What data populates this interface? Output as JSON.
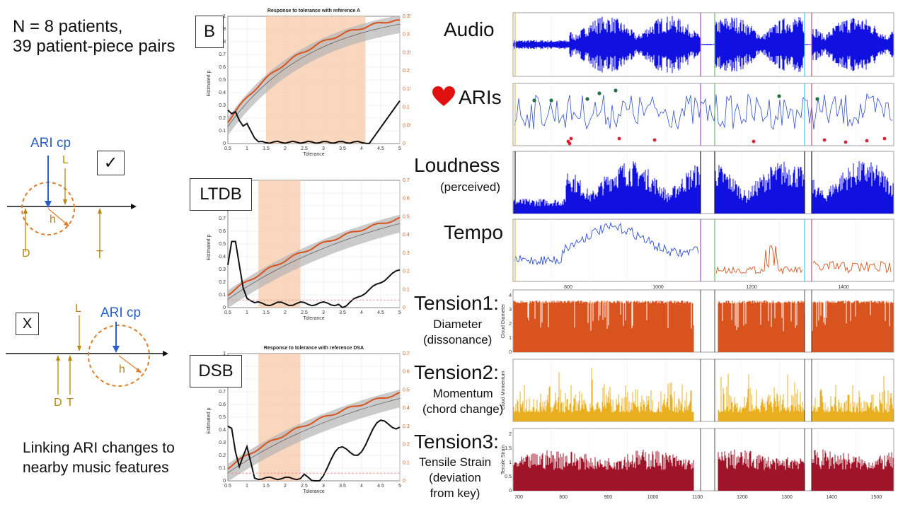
{
  "left": {
    "summary_line1": "N = 8 patients,",
    "summary_line2": "39 patient-piece pairs",
    "diagram1": {
      "ari_label": "ARI cp",
      "l": "L",
      "h": "h",
      "d": "D",
      "t": "T",
      "mark": "✓"
    },
    "diagram2": {
      "ari_label": "ARI cp",
      "l": "L",
      "h": "h",
      "d": "D",
      "t": "T",
      "mark": "X"
    },
    "caption_line1": "Linking ARI changes to",
    "caption_line2": "nearby music features"
  },
  "middle": {
    "panels": [
      {
        "id": "B",
        "label": "B",
        "title": "Response to tolerance with reference A",
        "ylabel": "Estimated p",
        "xlabel": "Tolerance",
        "xticks": [
          "0.5",
          "1",
          "1.5",
          "2",
          "2.5",
          "3",
          "3.5",
          "4",
          "4.5",
          "5"
        ],
        "yticks": [
          "0",
          "0.1",
          "0.2",
          "0.3",
          "0.4",
          "0.5",
          "0.6",
          "0.7",
          "0.8",
          "0.9",
          "1"
        ],
        "yticks_right": [
          "0",
          "0.05",
          "0.1",
          "0.15",
          "0.2",
          "0.25",
          "0.3",
          "0.35"
        ],
        "shade": [
          1.5,
          4.1
        ]
      },
      {
        "id": "LTDB",
        "label": "LTDB",
        "title": "",
        "ylabel": "Estimated p",
        "xlabel": "Tolerance",
        "xticks": [
          "0.5",
          "1",
          "1.5",
          "2",
          "2.5",
          "3",
          "3.5",
          "4",
          "4.5",
          "5"
        ],
        "yticks": [
          "0",
          "0.1",
          "0.2",
          "0.3",
          "0.4",
          "0.5",
          "0.6",
          "0.7",
          "0.8",
          "0.9",
          "1"
        ],
        "yticks_right": [
          "0",
          "0.1",
          "0.2",
          "0.3",
          "0.4",
          "0.5",
          "0.6",
          "0.7"
        ],
        "shade": [
          1.3,
          2.4
        ]
      },
      {
        "id": "DSB",
        "label": "DSB",
        "title": "Response to tolerance with reference DSA",
        "ylabel": "Estimated p",
        "xlabel": "Tolerance",
        "xticks": [
          "0.5",
          "1",
          "1.5",
          "2",
          "2.5",
          "3",
          "3.5",
          "4",
          "4.5",
          "5"
        ],
        "yticks": [
          "0",
          "0.1",
          "0.2",
          "0.3",
          "0.4",
          "0.5",
          "0.6",
          "0.7",
          "0.8",
          "0.9",
          "1"
        ],
        "yticks_right": [
          "0",
          "0.1",
          "0.2",
          "0.3",
          "0.4",
          "0.5",
          "0.6",
          "0.7"
        ],
        "shade": [
          1.3,
          2.4
        ]
      }
    ]
  },
  "right": {
    "rows": [
      {
        "id": "audio",
        "label": "Audio",
        "sub": ""
      },
      {
        "id": "aris",
        "label": "ARIs",
        "sub": ""
      },
      {
        "id": "loudness",
        "label": "Loudness",
        "sub": "(perceived)"
      },
      {
        "id": "tempo",
        "label": "Tempo",
        "sub": ""
      },
      {
        "id": "tension1",
        "label": "Tension1:",
        "sub": "Diameter\n(dissonance)"
      },
      {
        "id": "tension2",
        "label": "Tension2:",
        "sub": "Momentum\n(chord change)"
      },
      {
        "id": "tension3",
        "label": "Tension3:",
        "sub": "Tensile Strain\n(deviation\nfrom key)"
      }
    ],
    "tempo_xticks": [
      "800",
      "1000",
      "1200",
      "1400"
    ],
    "bottom_xticks": [
      "700",
      "800",
      "900",
      "1000",
      "1100",
      "1200",
      "1300",
      "1400",
      "1500"
    ],
    "t1_ylabel": "Cloud Diameter",
    "t1_yticks": [
      "0",
      "1",
      "2",
      "3",
      "4"
    ],
    "t2_ylabel": "Cloud Momentum",
    "t3_ylabel": "Tensile Strain",
    "t3_yticks": [
      "0",
      "0.5",
      "1",
      "1.5",
      "2"
    ],
    "colors": {
      "audio": "#1010e0",
      "tension1": "#d9531e",
      "tension2": "#e8b020",
      "tension3": "#a0142a",
      "tempo_red": "#d9531e"
    }
  }
}
